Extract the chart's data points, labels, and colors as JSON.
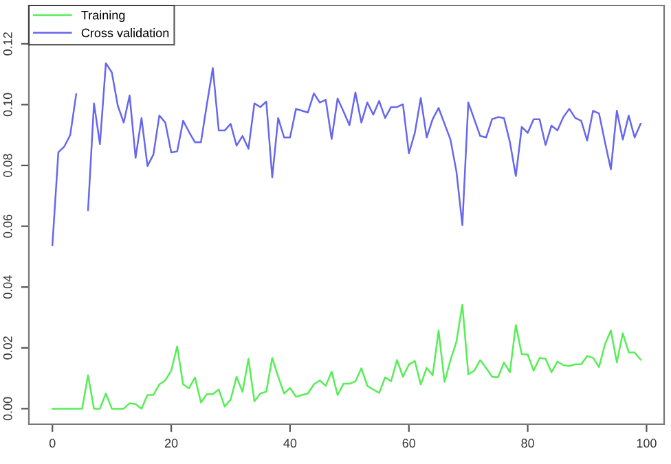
{
  "chart_data": {
    "type": "line",
    "x": [
      0,
      1,
      2,
      3,
      4,
      5,
      6,
      7,
      8,
      9,
      10,
      11,
      12,
      13,
      14,
      15,
      16,
      17,
      18,
      19,
      20,
      21,
      22,
      23,
      24,
      25,
      26,
      27,
      28,
      29,
      30,
      31,
      32,
      33,
      34,
      35,
      36,
      37,
      38,
      39,
      40,
      41,
      42,
      43,
      44,
      45,
      46,
      47,
      48,
      49,
      50,
      51,
      52,
      53,
      54,
      55,
      56,
      57,
      58,
      59,
      60,
      61,
      62,
      63,
      64,
      65,
      66,
      67,
      68,
      69,
      70,
      71,
      72,
      73,
      74,
      75,
      76,
      77,
      78,
      79,
      80,
      81,
      82,
      83,
      84,
      85,
      86,
      87,
      88,
      89,
      90,
      91,
      92,
      93,
      94,
      95,
      96,
      97,
      98,
      99
    ],
    "series": [
      {
        "name": "Training",
        "color": "#55ee55",
        "values": [
          0,
          0,
          0,
          0,
          0,
          0,
          0.011,
          0,
          0,
          0.005,
          0,
          0,
          0,
          0.0018,
          0.0015,
          0,
          0.0045,
          0.0045,
          0.008,
          0.0093,
          0.0125,
          0.0205,
          0.008,
          0.0067,
          0.0103,
          0.002,
          0.0048,
          0.0048,
          0.0063,
          0.0007,
          0.003,
          0.0105,
          0.0055,
          0.0164,
          0.0024,
          0.005,
          0.0056,
          0.0167,
          0.0105,
          0.005,
          0.0068,
          0.0039,
          0.0045,
          0.005,
          0.008,
          0.0093,
          0.0075,
          0.0122,
          0.0045,
          0.0082,
          0.0082,
          0.009,
          0.0133,
          0.0075,
          0.0063,
          0.0052,
          0.0103,
          0.009,
          0.016,
          0.0105,
          0.0145,
          0.0157,
          0.008,
          0.0134,
          0.011,
          0.0257,
          0.0088,
          0.016,
          0.022,
          0.0342,
          0.0113,
          0.0125,
          0.016,
          0.0134,
          0.0105,
          0.0103,
          0.0152,
          0.012,
          0.0275,
          0.0179,
          0.0178,
          0.0125,
          0.0167,
          0.0164,
          0.012,
          0.0155,
          0.0143,
          0.014,
          0.0146,
          0.0146,
          0.0173,
          0.0167,
          0.0137,
          0.0212,
          0.0257,
          0.0152,
          0.0248,
          0.0185,
          0.0185,
          0.0161
        ]
      },
      {
        "name": "Cross validation",
        "color": "#6666ee",
        "values": [
          0.0538,
          0.0843,
          0.0862,
          0.09,
          0.1034,
          null,
          0.0653,
          0.1004,
          0.087,
          0.1136,
          0.1106,
          0.0997,
          0.0941,
          0.103,
          0.0825,
          0.0956,
          0.0798,
          0.0836,
          0.0964,
          0.0941,
          0.0843,
          0.0846,
          0.0947,
          0.091,
          0.0876,
          0.0876,
          0.1001,
          0.112,
          0.0915,
          0.0915,
          0.0937,
          0.0865,
          0.0897,
          0.0855,
          0.1004,
          0.0992,
          0.101,
          0.0761,
          0.0956,
          0.0892,
          0.0892,
          0.0986,
          0.098,
          0.0974,
          0.1037,
          0.1007,
          0.1016,
          0.0887,
          0.102,
          0.0977,
          0.0932,
          0.104,
          0.0941,
          0.1007,
          0.0967,
          0.1012,
          0.0956,
          0.0992,
          0.0992,
          0.1001,
          0.084,
          0.0907,
          0.1022,
          0.0892,
          0.0952,
          0.0989,
          0.0937,
          0.0885,
          0.078,
          0.0604,
          0.1007,
          0.0952,
          0.0897,
          0.0892,
          0.0952,
          0.0959,
          0.0956,
          0.0877,
          0.0765,
          0.0927,
          0.0907,
          0.0952,
          0.0952,
          0.0867,
          0.0931,
          0.0915,
          0.0959,
          0.0986,
          0.0956,
          0.0947,
          0.0882,
          0.098,
          0.0971,
          0.0877,
          0.0787,
          0.098,
          0.0885,
          0.0964,
          0.0892,
          0.0937
        ]
      }
    ],
    "xlim": [
      -3.96,
      102.96
    ],
    "ylim": [
      -0.0051,
      0.1326
    ],
    "xticks": [
      0,
      20,
      40,
      60,
      80,
      100
    ],
    "yticks": [
      {
        "value": 0,
        "label": "0.00"
      },
      {
        "value": 0.02,
        "label": "0.02"
      },
      {
        "value": 0.04,
        "label": "0.04"
      },
      {
        "value": 0.06,
        "label": "0.06"
      },
      {
        "value": 0.08,
        "label": "0.08"
      },
      {
        "value": 0.1,
        "label": "0.10"
      },
      {
        "value": 0.12,
        "label": "0.12"
      }
    ],
    "grid": false,
    "legend": "top left",
    "marker": "none",
    "line_style": "solid"
  }
}
